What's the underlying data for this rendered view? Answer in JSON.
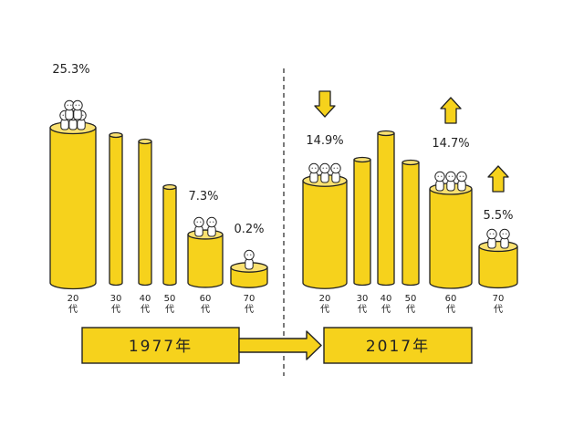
{
  "chart_data": [
    {
      "type": "bar",
      "year_label": "1977年",
      "categories": [
        "20代",
        "30代",
        "40代",
        "50代",
        "60代",
        "70代"
      ],
      "values": [
        25.3,
        null,
        null,
        null,
        7.3,
        0.2
      ],
      "value_labels": [
        "25.3%",
        "",
        "",
        "",
        "7.3%",
        "0.2%"
      ],
      "trend": [
        null,
        null,
        null,
        null,
        null,
        null
      ]
    },
    {
      "type": "bar",
      "year_label": "2017年",
      "categories": [
        "20代",
        "30代",
        "40代",
        "50代",
        "60代",
        "70代"
      ],
      "values": [
        14.9,
        null,
        null,
        null,
        14.7,
        5.5
      ],
      "value_labels": [
        "14.9%",
        "",
        "",
        "",
        "14.7%",
        "5.5%"
      ],
      "trend": [
        "down",
        null,
        null,
        null,
        "up",
        "up"
      ]
    }
  ],
  "colors": {
    "bar_fill": "#f6d21c",
    "bar_top": "#fae170",
    "outline": "#222222",
    "arrow_fill": "#f6d21c"
  },
  "icons": [
    "people-figure-icon",
    "down-arrow-icon",
    "up-arrow-icon",
    "right-arrow-icon"
  ]
}
